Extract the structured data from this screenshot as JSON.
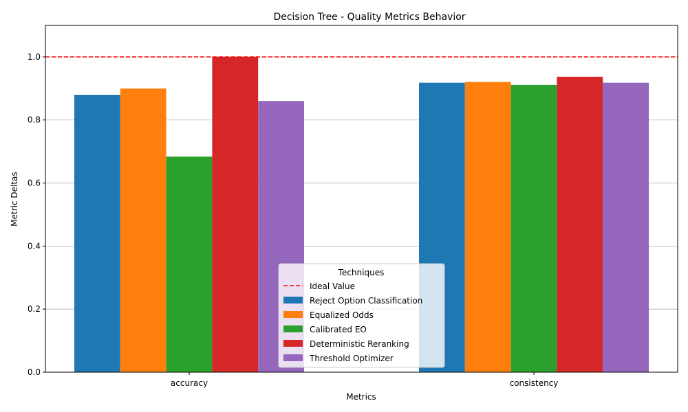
{
  "chart_data": {
    "type": "bar",
    "title": "Decision Tree - Quality Metrics Behavior",
    "xlabel": "Metrics",
    "ylabel": "Metric Deltas",
    "categories": [
      "accuracy",
      "consistency"
    ],
    "ylim": [
      0,
      1.1
    ],
    "yticks": [
      "0.0",
      "0.2",
      "0.4",
      "0.6",
      "0.8",
      "1.0"
    ],
    "grid": "horizontal",
    "series": [
      {
        "name": "Reject Option Classification",
        "color": "#1f77b4",
        "values": [
          0.88,
          0.918
        ]
      },
      {
        "name": "Equalized Odds",
        "color": "#ff7f0e",
        "values": [
          0.9,
          0.921
        ]
      },
      {
        "name": "Calibrated EO",
        "color": "#2ca02c",
        "values": [
          0.684,
          0.911
        ]
      },
      {
        "name": "Deterministic Reranking",
        "color": "#d62728",
        "values": [
          1.0,
          0.937
        ]
      },
      {
        "name": "Threshold Optimizer",
        "color": "#9467bd",
        "values": [
          0.86,
          0.918
        ]
      }
    ],
    "reference_line": {
      "name": "Ideal Value",
      "value": 1.0,
      "color": "#ff0000",
      "style": "dashed"
    },
    "legend": {
      "title": "Techniques",
      "placement": "lower-center"
    }
  }
}
